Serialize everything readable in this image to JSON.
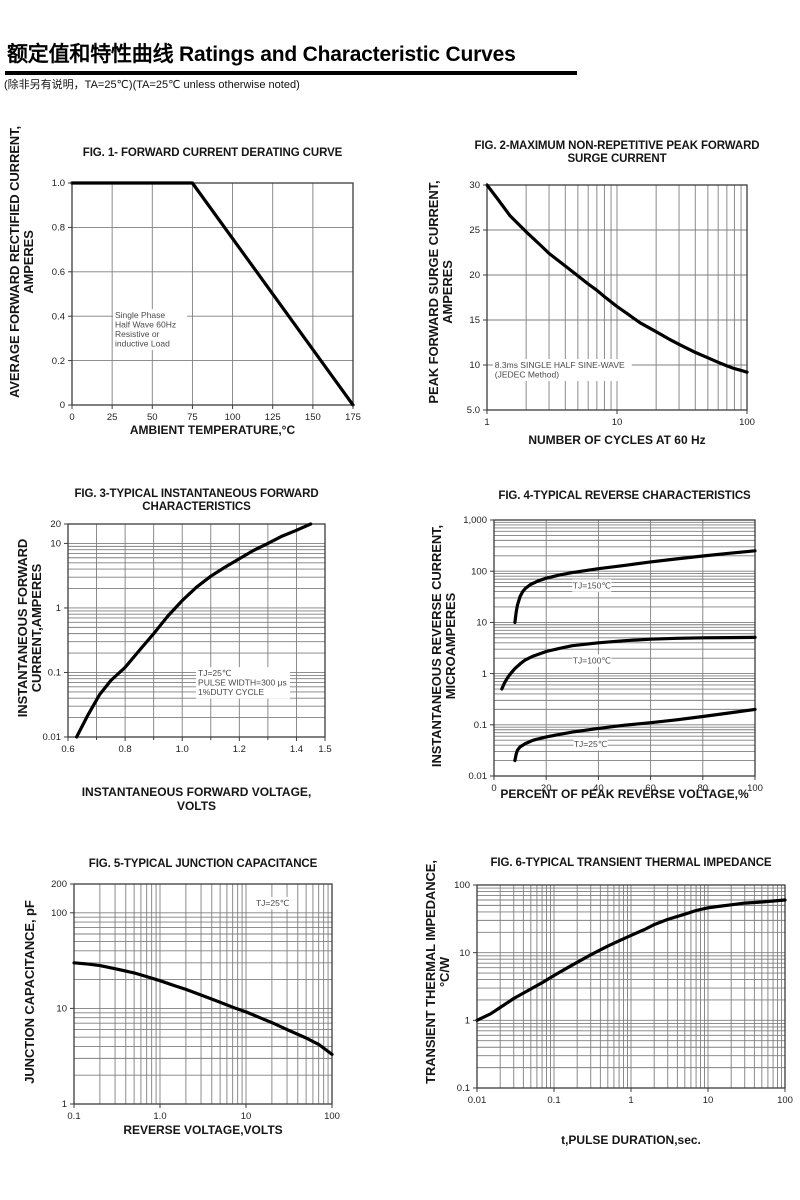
{
  "header": {
    "title": "额定值和特性曲线 Ratings and Characteristic Curves",
    "subtitle": "(除非另有说明，TA=25℃)(TA=25℃  unless otherwise noted)"
  },
  "chart_data": [
    {
      "id": "fig1",
      "type": "line",
      "title_lines": [
        "FIG. 1- FORWARD CURRENT DERATING CURVE"
      ],
      "ylabel_lines": [
        "AVERAGE FORWARD RECTIFIED CURRENT,",
        "AMPERES"
      ],
      "xlabel_lines": [
        "AMBIENT TEMPERATURE,°C"
      ],
      "x_axis": {
        "type": "linear",
        "min": 0,
        "max": 175,
        "ticks": [
          0,
          25,
          50,
          75,
          100,
          125,
          150,
          175
        ],
        "tick_labels": [
          "0",
          "25",
          "50",
          "75",
          "100",
          "125",
          "150",
          "175"
        ]
      },
      "y_axis": {
        "type": "linear",
        "min": 0,
        "max": 1,
        "ticks": [
          0,
          0.2,
          0.4,
          0.6,
          0.8,
          1
        ],
        "tick_labels": [
          "0",
          "0.2",
          "0.4",
          "0.6",
          "0.8",
          "1.0"
        ]
      },
      "series": [
        {
          "name": "forward-current-derating",
          "points": [
            [
              0,
              1
            ],
            [
              75,
              1
            ],
            [
              175,
              0
            ]
          ]
        }
      ],
      "annotations": [
        {
          "lines": [
            "Single Phase",
            "Half Wave 60Hz",
            "Resistive or",
            "inductive Load"
          ],
          "fx": 0.153,
          "fy": 0.595,
          "align": "start"
        }
      ]
    },
    {
      "id": "fig2",
      "type": "line",
      "title_lines": [
        "FIG. 2-MAXIMUM NON-REPETITIVE PEAK FORWARD",
        "SURGE CURRENT"
      ],
      "ylabel_lines": [
        "PEAK  FORWARD SURGE CURRENT,",
        "AMPERES"
      ],
      "xlabel_lines": [
        "NUMBER OF CYCLES AT 60 Hz"
      ],
      "x_axis": {
        "type": "log",
        "min": 1,
        "max": 100,
        "ticks": [
          1,
          10,
          100
        ],
        "tick_labels": [
          "1",
          "10",
          "100"
        ]
      },
      "y_axis": {
        "type": "linear",
        "min": 5,
        "max": 30,
        "ticks": [
          5,
          10,
          15,
          20,
          25,
          30
        ],
        "tick_labels": [
          "5.0",
          "10",
          "15",
          "20",
          "25",
          "30"
        ]
      },
      "series": [
        {
          "name": "peak-surge-current",
          "points": [
            [
              1,
              30
            ],
            [
              1.2,
              28.5
            ],
            [
              1.5,
              26.6
            ],
            [
              2,
              24.8
            ],
            [
              2.5,
              23.5
            ],
            [
              3,
              22.4
            ],
            [
              4,
              21
            ],
            [
              5,
              19.9
            ],
            [
              6,
              19
            ],
            [
              7,
              18.3
            ],
            [
              8,
              17.6
            ],
            [
              10,
              16.5
            ],
            [
              12,
              15.7
            ],
            [
              15,
              14.7
            ],
            [
              20,
              13.7
            ],
            [
              25,
              12.9
            ],
            [
              30,
              12.3
            ],
            [
              40,
              11.4
            ],
            [
              50,
              10.8
            ],
            [
              60,
              10.3
            ],
            [
              70,
              9.9
            ],
            [
              80,
              9.6
            ],
            [
              90,
              9.4
            ],
            [
              100,
              9.2
            ]
          ]
        }
      ],
      "annotations": [
        {
          "lines": [
            "8.3ms SINGLE HALF SINE-WAVE",
            "(JEDEC Method)"
          ],
          "fx": 0.03,
          "fy": 0.8,
          "align": "start"
        }
      ]
    },
    {
      "id": "fig3",
      "type": "line",
      "title_lines": [
        "FIG. 3-TYPICAL INSTANTANEOUS FORWARD",
        "CHARACTERISTICS"
      ],
      "ylabel_lines": [
        "INSTANTANEOUS FORWARD",
        "CURRENT,AMPERES"
      ],
      "xlabel_lines": [
        "INSTANTANEOUS FORWARD VOLTAGE,",
        "VOLTS"
      ],
      "x_axis": {
        "type": "linear",
        "min": 0.6,
        "max": 1.5,
        "ticks": [
          0.6,
          0.8,
          1.0,
          1.2,
          1.4,
          1.5
        ],
        "tick_labels": [
          "0.6",
          "0.8",
          "1.0",
          "1.2",
          "1.4",
          "1.5"
        ],
        "grid_values": [
          0.6,
          0.7,
          0.8,
          0.9,
          1.0,
          1.1,
          1.2,
          1.3,
          1.4,
          1.5
        ]
      },
      "y_axis": {
        "type": "log",
        "min": 0.01,
        "max": 20,
        "ticks": [
          0.01,
          0.1,
          1,
          10,
          20
        ],
        "tick_labels": [
          "0.01",
          "0.1",
          "1",
          "10",
          "20"
        ]
      },
      "series": [
        {
          "name": "forward-characteristic",
          "points": [
            [
              0.63,
              0.01
            ],
            [
              0.67,
              0.022
            ],
            [
              0.71,
              0.045
            ],
            [
              0.75,
              0.075
            ],
            [
              0.8,
              0.12
            ],
            [
              0.85,
              0.22
            ],
            [
              0.9,
              0.4
            ],
            [
              0.95,
              0.75
            ],
            [
              1.0,
              1.3
            ],
            [
              1.05,
              2.1
            ],
            [
              1.1,
              3.1
            ],
            [
              1.15,
              4.3
            ],
            [
              1.2,
              5.8
            ],
            [
              1.25,
              7.8
            ],
            [
              1.3,
              10
            ],
            [
              1.35,
              13
            ],
            [
              1.4,
              16
            ],
            [
              1.45,
              20
            ]
          ]
        }
      ],
      "annotations": [
        {
          "lines": [
            "TJ=25℃",
            "PULSE WIDTH=300 μs",
            "1%DUTY CYCLE"
          ],
          "fx": 0.506,
          "fy": 0.7,
          "align": "start"
        }
      ]
    },
    {
      "id": "fig4",
      "type": "line",
      "title_lines": [
        "FIG. 4-TYPICAL REVERSE CHARACTERISTICS"
      ],
      "ylabel_lines": [
        "INSTANTANEOUS REVERSE CURRENT,",
        "MICROAMPERES"
      ],
      "xlabel_lines": [
        "PERCENT OF PEAK REVERSE VOLTAGE,%"
      ],
      "x_axis": {
        "type": "linear",
        "min": 0,
        "max": 100,
        "ticks": [
          0,
          20,
          40,
          60,
          80,
          100
        ],
        "tick_labels": [
          "0",
          "20",
          "40",
          "60",
          "80",
          "100"
        ]
      },
      "y_axis": {
        "type": "log",
        "min": 0.01,
        "max": 1000,
        "ticks": [
          0.01,
          0.1,
          1,
          10,
          100,
          1000
        ],
        "tick_labels": [
          "0.01",
          "0.1",
          "1",
          "10",
          "100",
          "1,000"
        ]
      },
      "series": [
        {
          "name": "TJ=150℃",
          "points": [
            [
              8,
              10
            ],
            [
              8.5,
              16
            ],
            [
              9,
              22
            ],
            [
              10,
              32
            ],
            [
              11,
              40
            ],
            [
              12,
              46
            ],
            [
              14,
              55
            ],
            [
              17,
              65
            ],
            [
              20,
              73
            ],
            [
              25,
              84
            ],
            [
              30,
              94
            ],
            [
              40,
              112
            ],
            [
              50,
              130
            ],
            [
              60,
              152
            ],
            [
              70,
              174
            ],
            [
              80,
              198
            ],
            [
              90,
              224
            ],
            [
              100,
              250
            ]
          ]
        },
        {
          "name": "TJ=100℃",
          "points": [
            [
              3,
              0.5
            ],
            [
              4,
              0.65
            ],
            [
              5,
              0.8
            ],
            [
              6,
              0.95
            ],
            [
              8,
              1.25
            ],
            [
              10,
              1.55
            ],
            [
              12,
              1.85
            ],
            [
              15,
              2.2
            ],
            [
              20,
              2.7
            ],
            [
              25,
              3.1
            ],
            [
              30,
              3.5
            ],
            [
              40,
              4.0
            ],
            [
              50,
              4.4
            ],
            [
              60,
              4.7
            ],
            [
              70,
              4.9
            ],
            [
              80,
              5.0
            ],
            [
              90,
              5.05
            ],
            [
              100,
              5.1
            ]
          ]
        },
        {
          "name": "TJ=25℃",
          "points": [
            [
              8,
              0.02
            ],
            [
              8.5,
              0.027
            ],
            [
              9,
              0.032
            ],
            [
              10,
              0.037
            ],
            [
              12,
              0.043
            ],
            [
              15,
              0.05
            ],
            [
              20,
              0.058
            ],
            [
              25,
              0.065
            ],
            [
              30,
              0.072
            ],
            [
              40,
              0.085
            ],
            [
              50,
              0.098
            ],
            [
              60,
              0.11
            ],
            [
              70,
              0.125
            ],
            [
              80,
              0.145
            ],
            [
              90,
              0.17
            ],
            [
              100,
              0.2
            ]
          ]
        }
      ],
      "annotations": [
        {
          "lines": [
            "TJ=150℃"
          ],
          "fx": 0.375,
          "fy": 0.255,
          "align": "middle"
        },
        {
          "lines": [
            "TJ=100℃"
          ],
          "fx": 0.375,
          "fy": 0.549,
          "align": "middle"
        },
        {
          "lines": [
            "TJ=25℃"
          ],
          "fx": 0.37,
          "fy": 0.875,
          "align": "middle"
        }
      ]
    },
    {
      "id": "fig5",
      "type": "line",
      "title_lines": [
        "FIG. 5-TYPICAL JUNCTION CAPACITANCE"
      ],
      "ylabel_lines": [
        "JUNCTION CAPACITANCE, pF"
      ],
      "xlabel_lines": [
        "REVERSE VOLTAGE,VOLTS"
      ],
      "x_axis": {
        "type": "log",
        "min": 0.1,
        "max": 100,
        "ticks": [
          0.1,
          1,
          10,
          100
        ],
        "tick_labels": [
          "0.1",
          "1.0",
          "10",
          "100"
        ]
      },
      "y_axis": {
        "type": "log",
        "min": 1,
        "max": 200,
        "ticks": [
          1,
          10,
          100,
          200
        ],
        "tick_labels": [
          "1",
          "10",
          "100",
          "200"
        ]
      },
      "series": [
        {
          "name": "junction-capacitance",
          "points": [
            [
              0.1,
              30
            ],
            [
              0.15,
              29
            ],
            [
              0.2,
              28
            ],
            [
              0.3,
              26
            ],
            [
              0.5,
              23.5
            ],
            [
              0.7,
              21.5
            ],
            [
              1,
              19.5
            ],
            [
              1.5,
              17.2
            ],
            [
              2,
              15.8
            ],
            [
              3,
              13.8
            ],
            [
              5,
              11.6
            ],
            [
              7,
              10.3
            ],
            [
              10,
              9.2
            ],
            [
              15,
              7.9
            ],
            [
              20,
              7.1
            ],
            [
              30,
              6.0
            ],
            [
              50,
              4.9
            ],
            [
              70,
              4.2
            ],
            [
              100,
              3.3
            ]
          ]
        }
      ],
      "annotations": [
        {
          "lines": [
            "TJ=25℃"
          ],
          "fx": 0.77,
          "fy": 0.086,
          "align": "middle"
        }
      ]
    },
    {
      "id": "fig6",
      "type": "line",
      "title_lines": [
        "FIG. 6-TYPICAL TRANSIENT THERMAL IMPEDANCE"
      ],
      "ylabel_lines": [
        "TRANSIENT THERMAL IMPEDANCE,",
        "°C/W"
      ],
      "xlabel_lines": [
        "t,PULSE DURATION,sec."
      ],
      "x_axis": {
        "type": "log",
        "min": 0.01,
        "max": 100,
        "ticks": [
          0.01,
          0.1,
          1,
          10,
          100
        ],
        "tick_labels": [
          "0.01",
          "0.1",
          "1",
          "10",
          "100"
        ]
      },
      "y_axis": {
        "type": "log",
        "min": 0.1,
        "max": 100,
        "ticks": [
          0.1,
          1,
          10,
          100
        ],
        "tick_labels": [
          "0.1",
          "1",
          "10",
          "100"
        ]
      },
      "series": [
        {
          "name": "transient-thermal-impedance",
          "points": [
            [
              0.01,
              1
            ],
            [
              0.015,
              1.25
            ],
            [
              0.02,
              1.55
            ],
            [
              0.03,
              2.1
            ],
            [
              0.05,
              2.9
            ],
            [
              0.07,
              3.6
            ],
            [
              0.1,
              4.6
            ],
            [
              0.15,
              6
            ],
            [
              0.2,
              7.2
            ],
            [
              0.3,
              9.3
            ],
            [
              0.5,
              12.5
            ],
            [
              0.7,
              15
            ],
            [
              1,
              18
            ],
            [
              1.5,
              22
            ],
            [
              2,
              26
            ],
            [
              3,
              31
            ],
            [
              5,
              37
            ],
            [
              7,
              42
            ],
            [
              10,
              46
            ],
            [
              15,
              49
            ],
            [
              20,
              51
            ],
            [
              30,
              54
            ],
            [
              50,
              56
            ],
            [
              70,
              58
            ],
            [
              100,
              60
            ]
          ]
        }
      ],
      "annotations": []
    }
  ]
}
